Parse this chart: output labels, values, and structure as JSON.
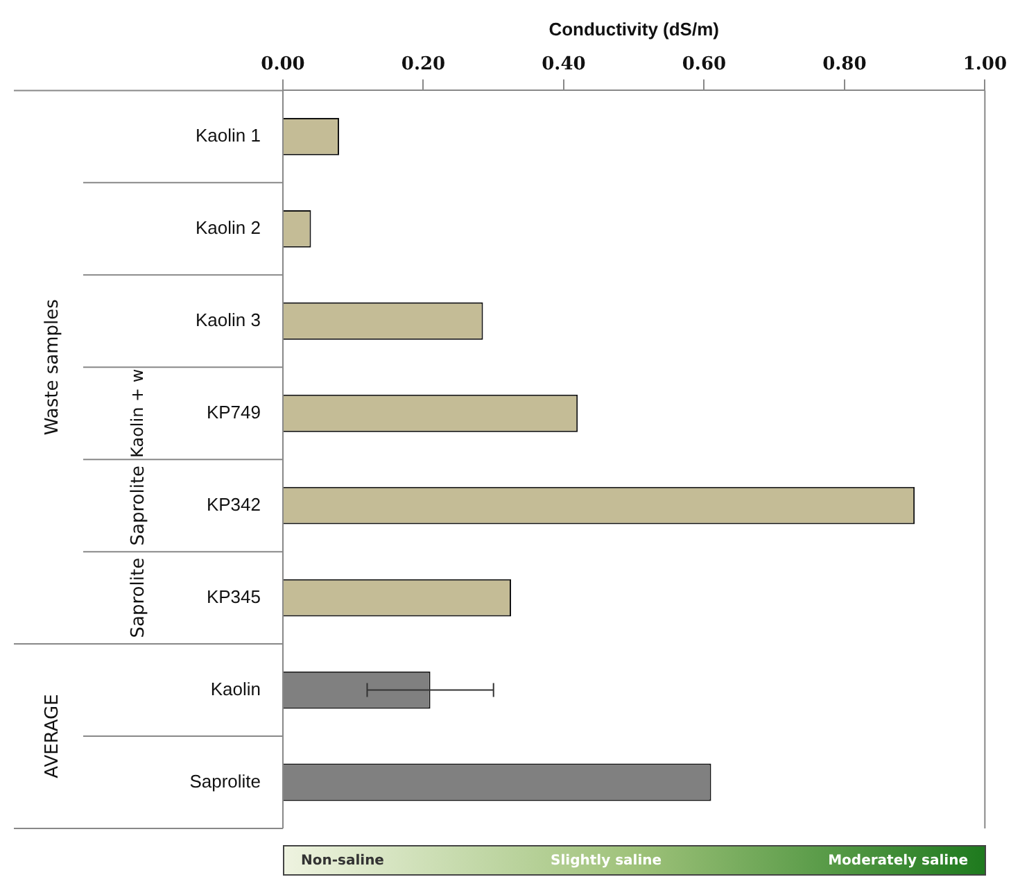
{
  "chart_data": {
    "type": "bar",
    "orientation": "horizontal",
    "xlabel": "Conductivity (dS/m)",
    "categories": [
      "Kaolin 1",
      "Kaolin 2",
      "Kaolin 3",
      "KP749",
      "KP342",
      "KP345",
      "Kaolin",
      "Saprolite"
    ],
    "values": [
      0.08,
      0.04,
      0.285,
      0.42,
      0.9,
      0.325,
      0.21,
      0.61
    ],
    "colors": [
      "#c4bc96",
      "#c4bc96",
      "#c4bc96",
      "#c4bc96",
      "#c4bc96",
      "#c4bc96",
      "#808080",
      "#808080"
    ],
    "errors": [
      null,
      null,
      null,
      null,
      null,
      null,
      0.09,
      null
    ],
    "xlim": [
      0,
      1
    ],
    "xticks": [
      {
        "value": 0,
        "label": "0.00"
      },
      {
        "value": 0.2,
        "label": "0.20"
      },
      {
        "value": 0.4,
        "label": "0.40"
      },
      {
        "value": 0.6,
        "label": "0.60"
      },
      {
        "value": 0.8,
        "label": "0.80"
      },
      {
        "value": 1,
        "label": "1.00"
      }
    ],
    "grid": false,
    "legend": false,
    "annotations": [
      "Waste samples",
      "AVERAGE",
      "Kaolin + w",
      "Saprolite",
      "Saprolite",
      "Non-saline",
      "Slightly saline",
      "Moderately saline"
    ]
  }
}
